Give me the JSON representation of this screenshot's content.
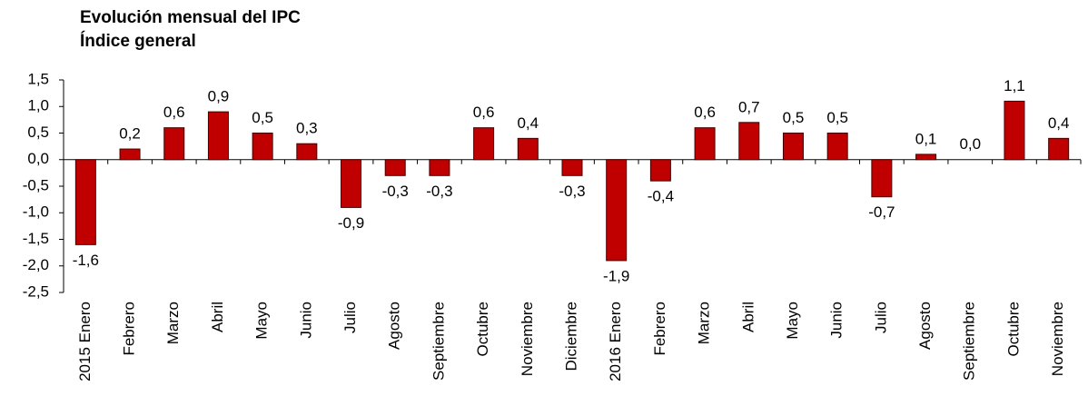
{
  "chart_data": {
    "type": "bar",
    "title": "Evolución mensual del IPC",
    "subtitle": "Índice general",
    "categories": [
      "2015 Enero",
      "Febrero",
      "Marzo",
      "Abril",
      "Mayo",
      "Junio",
      "Julio",
      "Agosto",
      "Septiembre",
      "Octubre",
      "Noviembre",
      "Diciembre",
      "2016 Enero",
      "Febrero",
      "Marzo",
      "Abril",
      "Mayo",
      "Junio",
      "Julio",
      "Agosto",
      "Septiembre",
      "Octubre",
      "Noviembre"
    ],
    "values": [
      -1.6,
      0.2,
      0.6,
      0.9,
      0.5,
      0.3,
      -0.9,
      -0.3,
      -0.3,
      0.6,
      0.4,
      -0.3,
      -1.9,
      -0.4,
      0.6,
      0.7,
      0.5,
      0.5,
      -0.7,
      0.1,
      0.0,
      1.1,
      0.4
    ],
    "value_labels": [
      "-1,6",
      "0,2",
      "0,6",
      "0,9",
      "0,5",
      "0,3",
      "-0,9",
      "-0,3",
      "-0,3",
      "0,6",
      "0,4",
      "-0,3",
      "-1,9",
      "-0,4",
      "0,6",
      "0,7",
      "0,5",
      "0,5",
      "-0,7",
      "0,1",
      "0,0",
      "1,1",
      "0,4"
    ],
    "color": "#c00000",
    "ylim": [
      -2.5,
      1.5
    ],
    "yticks": [
      {
        "value": -2.5,
        "label": "-2,5"
      },
      {
        "value": -2.0,
        "label": "-2,0"
      },
      {
        "value": -1.5,
        "label": "-1,5"
      },
      {
        "value": -1.0,
        "label": "-1,0"
      },
      {
        "value": -0.5,
        "label": "-0,5"
      },
      {
        "value": 0.0,
        "label": "0,0"
      },
      {
        "value": 0.5,
        "label": "0,5"
      },
      {
        "value": 1.0,
        "label": "1,0"
      },
      {
        "value": 1.5,
        "label": "1,5"
      }
    ],
    "grid": false
  }
}
